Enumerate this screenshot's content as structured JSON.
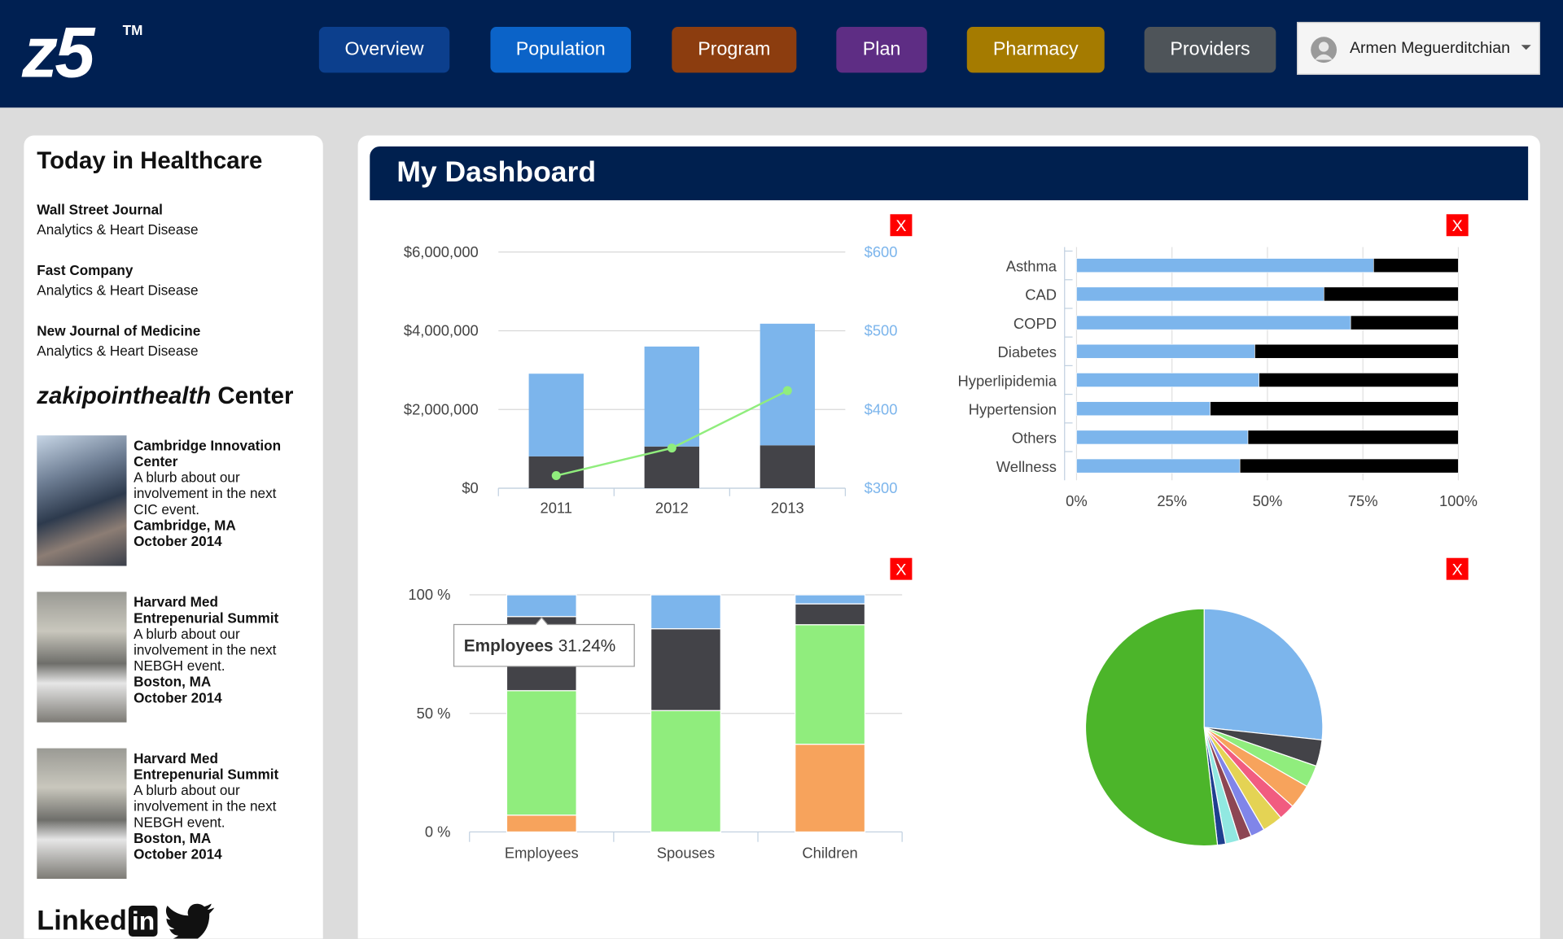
{
  "header": {
    "logo": "z5",
    "trademark": "TM",
    "nav": [
      "Overview",
      "Population",
      "Program",
      "Plan",
      "Pharmacy",
      "Providers"
    ],
    "nav_colors": [
      "#0c3f8d",
      "#0b63c8",
      "#8c3d0f",
      "#5e2d84",
      "#a57b00",
      "#4e5459"
    ],
    "user": "Armen Meguerditchian"
  },
  "sidebar": {
    "title": "Today in Healthcare",
    "news": [
      {
        "source": "Wall Street Journal",
        "topic": "Analytics & Heart Disease"
      },
      {
        "source": "Fast Company",
        "topic": "Analytics & Heart Disease"
      },
      {
        "source": "New Journal of Medicine",
        "topic": "Analytics & Heart Disease"
      }
    ],
    "center": {
      "brand": "zakipointhealth",
      "title": "Center"
    },
    "events": [
      {
        "name": "Cambridge Innovation Center",
        "blurb": "A blurb about our involvement in the next CIC event.",
        "location": "Cambridge, MA",
        "date": "October 2014"
      },
      {
        "name": "Harvard Med Entrepenurial Summit",
        "blurb": "A blurb about our involvement in the next NEBGH event.",
        "location": "Boston, MA",
        "date": "October 2014"
      },
      {
        "name": "Harvard Med Entrepenurial Summit",
        "blurb": "A blurb about our involvement in the next NEBGH event.",
        "location": "Boston, MA",
        "date": "October 2014"
      }
    ],
    "social": {
      "linkedin": "Linked",
      "badge": "in"
    }
  },
  "dashboard": {
    "title": "My Dashboard",
    "close_button": "X"
  },
  "chart_data": [
    {
      "type": "combo",
      "stacked": true,
      "categories": [
        "2011",
        "2012",
        "2013"
      ],
      "series": [
        {
          "color": "#434348",
          "values": [
            810000,
            1060000,
            1090000
          ]
        },
        {
          "color": "#7cb5ec",
          "values": [
            2100000,
            2540000,
            3090000
          ]
        },
        {
          "type": "line",
          "axis": "y2",
          "color": "#90ed7d",
          "values": [
            316,
            351,
            424
          ]
        }
      ],
      "ylim": [
        0,
        6000000
      ],
      "yticks": [
        {
          "value": 0,
          "label": "$0"
        },
        {
          "value": 2000000,
          "label": "$2,000,000"
        },
        {
          "value": 4000000,
          "label": "$4,000,000"
        },
        {
          "value": 6000000,
          "label": "$6,000,000"
        }
      ],
      "y2lim": [
        300,
        600
      ],
      "y2ticks": [
        {
          "value": 300,
          "label": "$300"
        },
        {
          "value": 400,
          "label": "$400"
        },
        {
          "value": 500,
          "label": "$500"
        },
        {
          "value": 600,
          "label": "$600"
        }
      ],
      "y2_color": "#7cb5ec",
      "grid": true
    },
    {
      "type": "hbar",
      "stacked": true,
      "categories": [
        "Asthma",
        "CAD",
        "COPD",
        "Diabetes",
        "Hyperlipidemia",
        "Hypertension",
        "Others",
        "Wellness"
      ],
      "series": [
        {
          "color": "#7cb5ec",
          "values": [
            77.8,
            64.8,
            71.8,
            46.7,
            47.8,
            35.0,
            44.9,
            42.8
          ]
        },
        {
          "color": "#000000",
          "values": [
            22.2,
            35.2,
            28.2,
            53.3,
            52.2,
            65.0,
            55.1,
            57.2
          ]
        }
      ],
      "xlim": [
        0,
        100
      ],
      "xticks": [
        {
          "value": 0,
          "label": "0%"
        },
        {
          "value": 25,
          "label": "25%"
        },
        {
          "value": 50,
          "label": "50%"
        },
        {
          "value": 75,
          "label": "75%"
        },
        {
          "value": 100,
          "label": "100%"
        }
      ],
      "grid": true
    },
    {
      "type": "bar",
      "stacked": true,
      "categories": [
        "Employees",
        "Spouses",
        "Children"
      ],
      "series": [
        {
          "color": "#f7a35c",
          "values": [
            7.1,
            0,
            37.0
          ]
        },
        {
          "color": "#90ed7d",
          "values": [
            52.5,
            51.2,
            50.4
          ]
        },
        {
          "color": "#434348",
          "values": [
            31.24,
            34.5,
            8.8
          ],
          "value_labels": [
            "31.24%",
            null,
            null
          ]
        },
        {
          "color": "#7cb5ec",
          "values": [
            9.16,
            14.3,
            3.8
          ]
        }
      ],
      "ylim": [
        0,
        100
      ],
      "yticks": [
        {
          "value": 0,
          "label": "0 %"
        },
        {
          "value": 50,
          "label": "50 %"
        },
        {
          "value": 100,
          "label": "100 %"
        }
      ],
      "grid": true
    },
    {
      "type": "pie",
      "values": [
        26.7,
        3.6,
        3.0,
        3.3,
        2.2,
        2.8,
        1.9,
        1.7,
        1.9,
        1.1,
        51.8
      ],
      "colors": [
        "#7cb5ec",
        "#434348",
        "#90ed7d",
        "#f7a35c",
        "#f15c80",
        "#e4d354",
        "#8085e9",
        "#8d4653",
        "#91e8e1",
        "#1f3f8f",
        "#4cb52a"
      ]
    }
  ]
}
